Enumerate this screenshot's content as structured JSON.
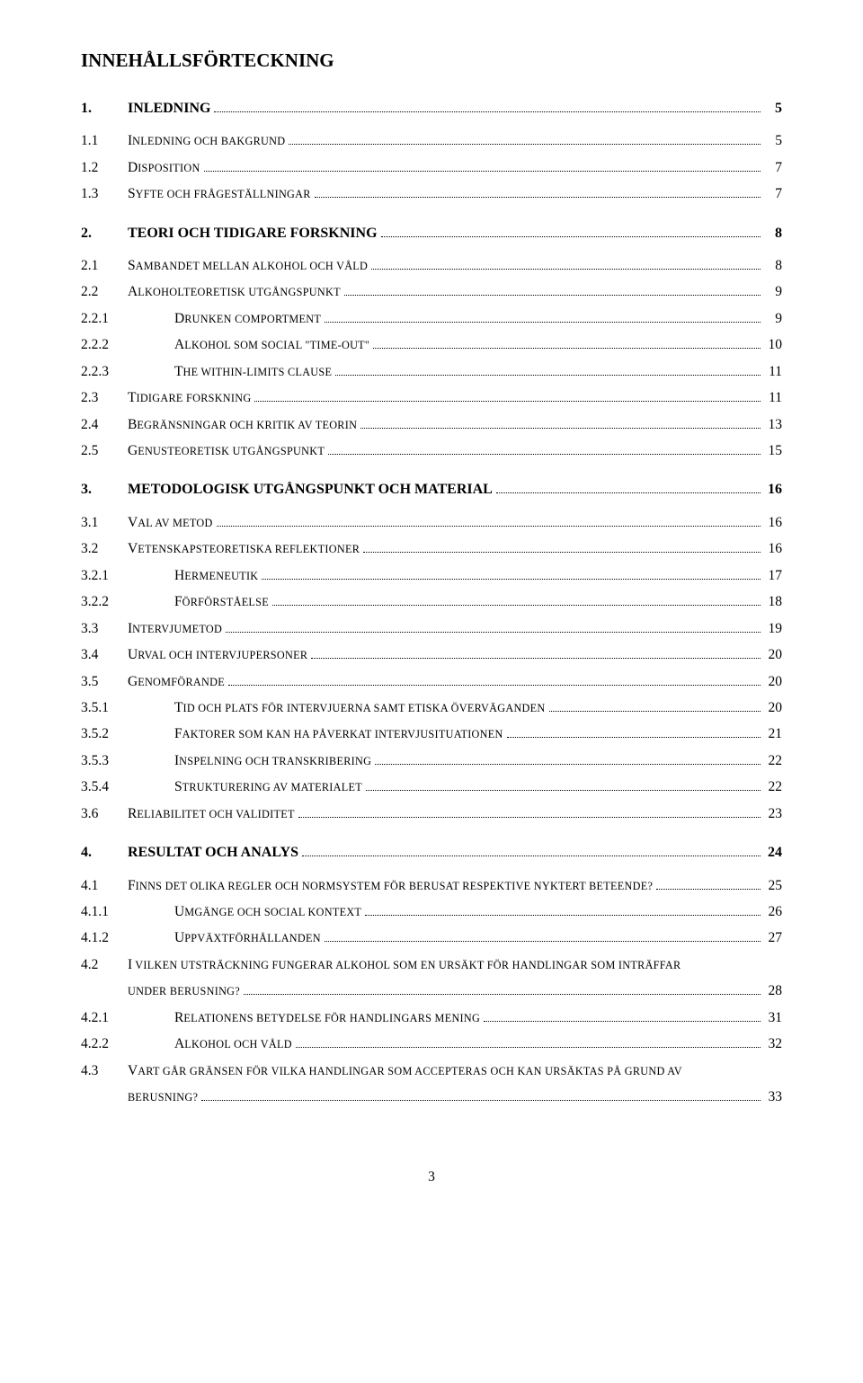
{
  "title": "INNEHÅLLSFÖRTECKNING",
  "page_number": "3",
  "colors": {
    "text": "#000000",
    "background": "#ffffff",
    "leader": "#000000"
  },
  "fonts": {
    "family": "Times New Roman",
    "title_size_pt": 16,
    "body_size_pt": 12
  },
  "entries": [
    {
      "level": 0,
      "num": "1.",
      "text": "INLEDNING",
      "page": "5"
    },
    {
      "level": 1,
      "num": "1.1",
      "first": "I",
      "rest": "NLEDNING OCH BAKGRUND",
      "page": "5"
    },
    {
      "level": 1,
      "num": "1.2",
      "first": "D",
      "rest": "ISPOSITION",
      "page": "7"
    },
    {
      "level": 1,
      "num": "1.3",
      "first": "S",
      "rest": "YFTE OCH FRÅGESTÄLLNINGAR",
      "page": "7"
    },
    {
      "level": 0,
      "num": "2.",
      "text": "TEORI OCH TIDIGARE FORSKNING",
      "page": "8"
    },
    {
      "level": 1,
      "num": "2.1",
      "first": "S",
      "rest": "AMBANDET MELLAN ALKOHOL OCH VÅLD",
      "page": "8"
    },
    {
      "level": 1,
      "num": "2.2",
      "first": "A",
      "rest": "LKOHOLTEORETISK UTGÅNGSPUNKT",
      "page": "9"
    },
    {
      "level": 2,
      "num": "2.2.1",
      "first": "D",
      "rest": "RUNKEN COMPORTMENT",
      "page": "9"
    },
    {
      "level": 2,
      "num": "2.2.2",
      "first": "A",
      "rest": "LKOHOL SOM SOCIAL \"TIME-OUT\"",
      "page": "10"
    },
    {
      "level": 2,
      "num": "2.2.3",
      "first": "T",
      "rest": "HE WITHIN-LIMITS CLAUSE",
      "page": "11"
    },
    {
      "level": 1,
      "num": "2.3",
      "first": "T",
      "rest": "IDIGARE FORSKNING",
      "page": "11"
    },
    {
      "level": 1,
      "num": "2.4",
      "first": "B",
      "rest": "EGRÄNSNINGAR OCH KRITIK AV TEORIN",
      "page": "13"
    },
    {
      "level": 1,
      "num": "2.5",
      "first": "G",
      "rest": "ENUSTEORETISK UTGÅNGSPUNKT",
      "page": "15"
    },
    {
      "level": 0,
      "num": "3.",
      "text": "METODOLOGISK UTGÅNGSPUNKT OCH MATERIAL",
      "page": "16"
    },
    {
      "level": 1,
      "num": "3.1",
      "first": "V",
      "rest": "AL AV METOD",
      "page": "16"
    },
    {
      "level": 1,
      "num": "3.2",
      "first": "V",
      "rest": "ETENSKAPSTEORETISKA REFLEKTIONER",
      "page": "16"
    },
    {
      "level": 2,
      "num": "3.2.1",
      "first": "H",
      "rest": "ERMENEUTIK",
      "page": "17"
    },
    {
      "level": 2,
      "num": "3.2.2",
      "first": "F",
      "rest": "ÖRFÖRSTÅELSE",
      "page": "18"
    },
    {
      "level": 1,
      "num": "3.3",
      "first": "I",
      "rest": "NTERVJUMETOD",
      "page": "19"
    },
    {
      "level": 1,
      "num": "3.4",
      "first": "U",
      "rest": "RVAL OCH INTERVJUPERSONER",
      "page": "20"
    },
    {
      "level": 1,
      "num": "3.5",
      "first": "G",
      "rest": "ENOMFÖRANDE",
      "page": "20"
    },
    {
      "level": 2,
      "num": "3.5.1",
      "first": "T",
      "rest": "ID OCH PLATS FÖR INTERVJUERNA SAMT ETISKA ÖVERVÄGANDEN",
      "page": "20"
    },
    {
      "level": 2,
      "num": "3.5.2",
      "first": "F",
      "rest": "AKTORER SOM KAN HA PÅVERKAT INTERVJUSITUATIONEN",
      "page": "21"
    },
    {
      "level": 2,
      "num": "3.5.3",
      "first": "I",
      "rest": "NSPELNING OCH TRANSKRIBERING",
      "page": "22"
    },
    {
      "level": 2,
      "num": "3.5.4",
      "first": "S",
      "rest": "TRUKTURERING AV MATERIALET",
      "page": "22"
    },
    {
      "level": 1,
      "num": "3.6",
      "first": "R",
      "rest": "ELIABILITET OCH VALIDITET",
      "page": "23"
    },
    {
      "level": 0,
      "num": "4.",
      "text": "RESULTAT OCH ANALYS",
      "page": "24"
    },
    {
      "level": 1,
      "num": "4.1",
      "first": "F",
      "rest": "INNS DET OLIKA REGLER OCH NORMSYSTEM FÖR BERUSAT RESPEKTIVE NYKTERT BETEENDE?",
      "page": "25"
    },
    {
      "level": 2,
      "num": "4.1.1",
      "first": "U",
      "rest": "MGÄNGE OCH SOCIAL KONTEXT",
      "page": "26"
    },
    {
      "level": 2,
      "num": "4.1.2",
      "first": "U",
      "rest": "PPVÄXTFÖRHÅLLANDEN",
      "page": "27"
    },
    {
      "level": 1,
      "num": "4.2",
      "wrap": true,
      "line1_first": "I",
      "line1_rest": " VILKEN UTSTRÄCKNING FUNGERAR ALKOHOL SOM EN URSÄKT FÖR HANDLINGAR SOM INTRÄFFAR",
      "line2_rest": "UNDER BERUSNING?",
      "page": "28"
    },
    {
      "level": 2,
      "num": "4.2.1",
      "first": "R",
      "rest": "ELATIONENS BETYDELSE FÖR HANDLINGARS MENING",
      "page": "31"
    },
    {
      "level": 2,
      "num": "4.2.2",
      "first": "A",
      "rest": "LKOHOL OCH VÅLD",
      "page": "32"
    },
    {
      "level": 1,
      "num": "4.3",
      "wrap": true,
      "line1_first": "V",
      "line1_rest": "ART GÅR GRÄNSEN FÖR VILKA HANDLINGAR SOM ACCEPTERAS OCH KAN URSÄKTAS PÅ GRUND AV",
      "line2_rest": "BERUSNING?",
      "page": "33"
    }
  ]
}
